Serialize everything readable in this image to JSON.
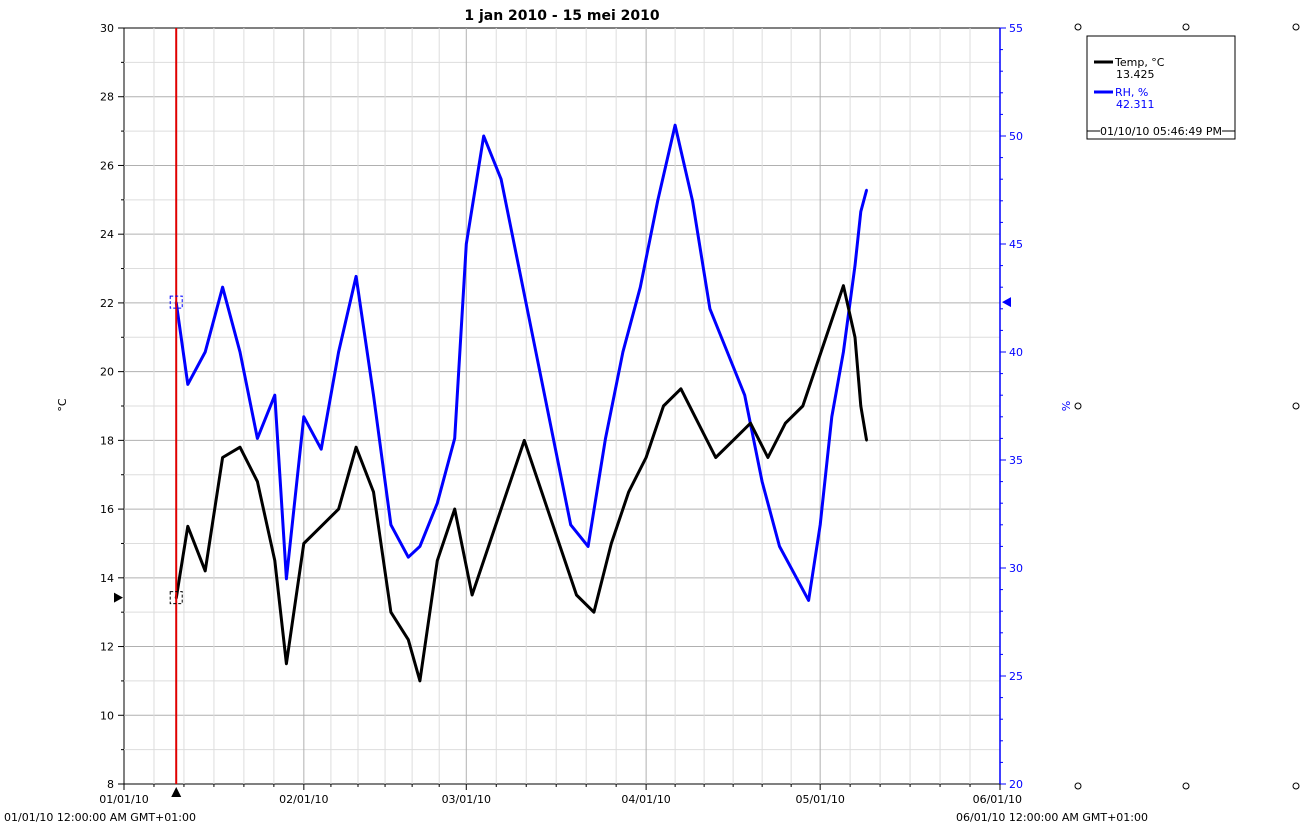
{
  "chart_data": {
    "type": "line",
    "title": "1 jan 2010 - 15 mei 2010",
    "y_left_label": "°C",
    "y_right_label": "%",
    "x_range": [
      "2010-01-01",
      "2010-06-01"
    ],
    "x_tick_labels": [
      "01/01/10",
      "02/01/10",
      "03/01/10",
      "04/01/10",
      "05/01/10",
      "06/01/10"
    ],
    "x_start_caption": "01/01/10 12:00:00 AM GMT+01:00",
    "x_end_caption": "06/01/10 12:00:00 AM GMT+01:00",
    "y_left_range": [
      8,
      30
    ],
    "y_left_ticks": [
      "8",
      "10",
      "12",
      "14",
      "16",
      "18",
      "20",
      "22",
      "24",
      "26",
      "28",
      "30"
    ],
    "y_right_range": [
      20,
      55
    ],
    "y_right_ticks": [
      "20",
      "25",
      "30",
      "35",
      "40",
      "45",
      "50",
      "55"
    ],
    "grid": true,
    "legend_position": "top-right",
    "cursor": {
      "date": "2010-01-10",
      "time_label": "01/10/10 05:46:49 PM",
      "temp_value": 13.425,
      "rh_value": 42.311,
      "color": "#e00000"
    },
    "series": [
      {
        "name": "Temp, °C",
        "value_label": "13.425",
        "color": "#000000",
        "axis": "left",
        "points": [
          [
            "2010-01-10",
            13.4
          ],
          [
            "2010-01-12",
            15.5
          ],
          [
            "2010-01-15",
            14.2
          ],
          [
            "2010-01-18",
            17.5
          ],
          [
            "2010-01-21",
            17.8
          ],
          [
            "2010-01-24",
            16.8
          ],
          [
            "2010-01-27",
            14.5
          ],
          [
            "2010-01-29",
            11.5
          ],
          [
            "2010-02-01",
            15.0
          ],
          [
            "2010-02-04",
            15.5
          ],
          [
            "2010-02-07",
            16.0
          ],
          [
            "2010-02-10",
            17.8
          ],
          [
            "2010-02-13",
            16.5
          ],
          [
            "2010-02-16",
            13.0
          ],
          [
            "2010-02-19",
            12.2
          ],
          [
            "2010-02-21",
            11.0
          ],
          [
            "2010-02-24",
            14.5
          ],
          [
            "2010-02-27",
            16.0
          ],
          [
            "2010-03-02",
            13.5
          ],
          [
            "2010-03-05",
            15.0
          ],
          [
            "2010-03-08",
            16.5
          ],
          [
            "2010-03-11",
            18.0
          ],
          [
            "2010-03-14",
            16.5
          ],
          [
            "2010-03-17",
            15.0
          ],
          [
            "2010-03-20",
            13.5
          ],
          [
            "2010-03-23",
            13.0
          ],
          [
            "2010-03-26",
            15.0
          ],
          [
            "2010-03-29",
            16.5
          ],
          [
            "2010-04-01",
            17.5
          ],
          [
            "2010-04-04",
            19.0
          ],
          [
            "2010-04-07",
            19.5
          ],
          [
            "2010-04-10",
            18.5
          ],
          [
            "2010-04-13",
            17.5
          ],
          [
            "2010-04-16",
            18.0
          ],
          [
            "2010-04-19",
            18.5
          ],
          [
            "2010-04-22",
            17.5
          ],
          [
            "2010-04-25",
            18.5
          ],
          [
            "2010-04-28",
            19.0
          ],
          [
            "2010-05-01",
            20.5
          ],
          [
            "2010-05-03",
            21.5
          ],
          [
            "2010-05-05",
            22.5
          ],
          [
            "2010-05-07",
            21.0
          ],
          [
            "2010-05-08",
            19.0
          ],
          [
            "2010-05-09",
            18.0
          ]
        ]
      },
      {
        "name": "RH, %",
        "value_label": "42.311",
        "color": "#0000ff",
        "axis": "right",
        "points": [
          [
            "2010-01-10",
            42.3
          ],
          [
            "2010-01-12",
            38.5
          ],
          [
            "2010-01-15",
            40.0
          ],
          [
            "2010-01-18",
            43.0
          ],
          [
            "2010-01-21",
            40.0
          ],
          [
            "2010-01-24",
            36.0
          ],
          [
            "2010-01-27",
            38.0
          ],
          [
            "2010-01-29",
            29.5
          ],
          [
            "2010-02-01",
            37.0
          ],
          [
            "2010-02-04",
            35.5
          ],
          [
            "2010-02-07",
            40.0
          ],
          [
            "2010-02-10",
            43.5
          ],
          [
            "2010-02-13",
            38.0
          ],
          [
            "2010-02-16",
            32.0
          ],
          [
            "2010-02-19",
            30.5
          ],
          [
            "2010-02-21",
            31.0
          ],
          [
            "2010-02-24",
            33.0
          ],
          [
            "2010-02-27",
            36.0
          ],
          [
            "2010-03-01",
            45.0
          ],
          [
            "2010-03-04",
            50.0
          ],
          [
            "2010-03-07",
            48.0
          ],
          [
            "2010-03-10",
            44.0
          ],
          [
            "2010-03-13",
            40.0
          ],
          [
            "2010-03-16",
            36.0
          ],
          [
            "2010-03-19",
            32.0
          ],
          [
            "2010-03-22",
            31.0
          ],
          [
            "2010-03-25",
            36.0
          ],
          [
            "2010-03-28",
            40.0
          ],
          [
            "2010-03-31",
            43.0
          ],
          [
            "2010-04-03",
            47.0
          ],
          [
            "2010-04-06",
            50.5
          ],
          [
            "2010-04-09",
            47.0
          ],
          [
            "2010-04-12",
            42.0
          ],
          [
            "2010-04-15",
            40.0
          ],
          [
            "2010-04-18",
            38.0
          ],
          [
            "2010-04-21",
            34.0
          ],
          [
            "2010-04-24",
            31.0
          ],
          [
            "2010-04-27",
            29.5
          ],
          [
            "2010-04-29",
            28.5
          ],
          [
            "2010-05-01",
            32.0
          ],
          [
            "2010-05-03",
            37.0
          ],
          [
            "2010-05-05",
            40.0
          ],
          [
            "2010-05-07",
            44.0
          ],
          [
            "2010-05-08",
            46.5
          ],
          [
            "2010-05-09",
            47.5
          ]
        ]
      }
    ]
  }
}
